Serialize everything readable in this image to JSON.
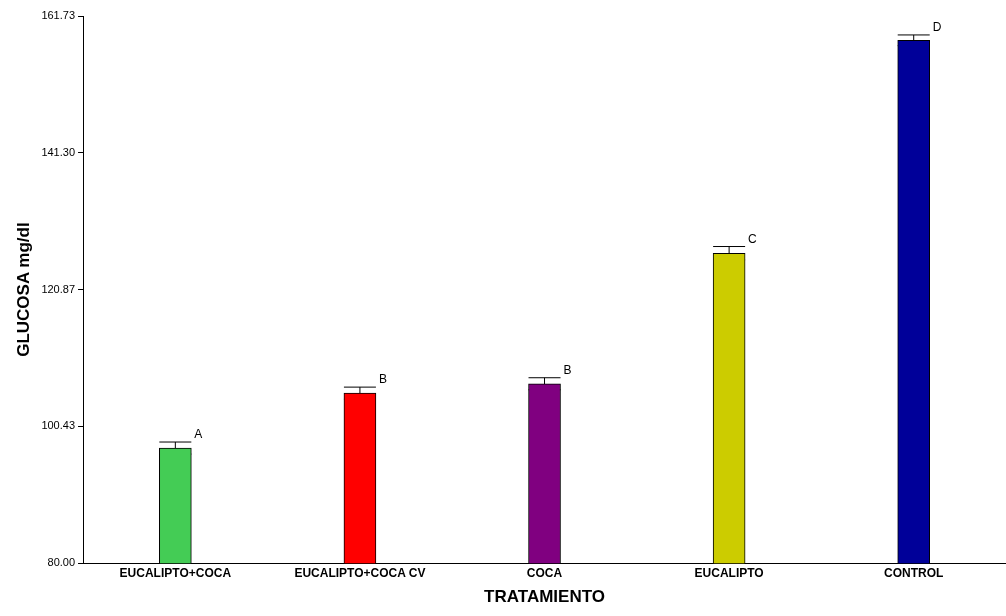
{
  "chart_data": {
    "type": "bar",
    "xlabel": "TRATAMIENTO",
    "ylabel": "GLUCOSA mg/dl",
    "categories": [
      "EUCALIPTO+COCA",
      "EUCALIPTO+COCA CV",
      "COCA",
      "EUCALIPTO",
      "CONTROL"
    ],
    "values": [
      97.2,
      105.4,
      106.8,
      126.3,
      158.1
    ],
    "errors": [
      0.9,
      0.9,
      0.9,
      1.0,
      0.8
    ],
    "colors": [
      "#44cc55",
      "#ff0000",
      "#800080",
      "#cccc00",
      "#000099"
    ],
    "ylim": [
      80,
      161.73
    ],
    "yticks": [
      {
        "value": 80,
        "label": "80.00"
      },
      {
        "value": 100.43,
        "label": "100.43"
      },
      {
        "value": 120.87,
        "label": "120.87"
      },
      {
        "value": 141.3,
        "label": "141.30"
      },
      {
        "value": 161.73,
        "label": "161.73"
      }
    ],
    "annotations": [
      "A",
      "B",
      "B",
      "C",
      "D"
    ],
    "grid": false,
    "legend": false
  }
}
